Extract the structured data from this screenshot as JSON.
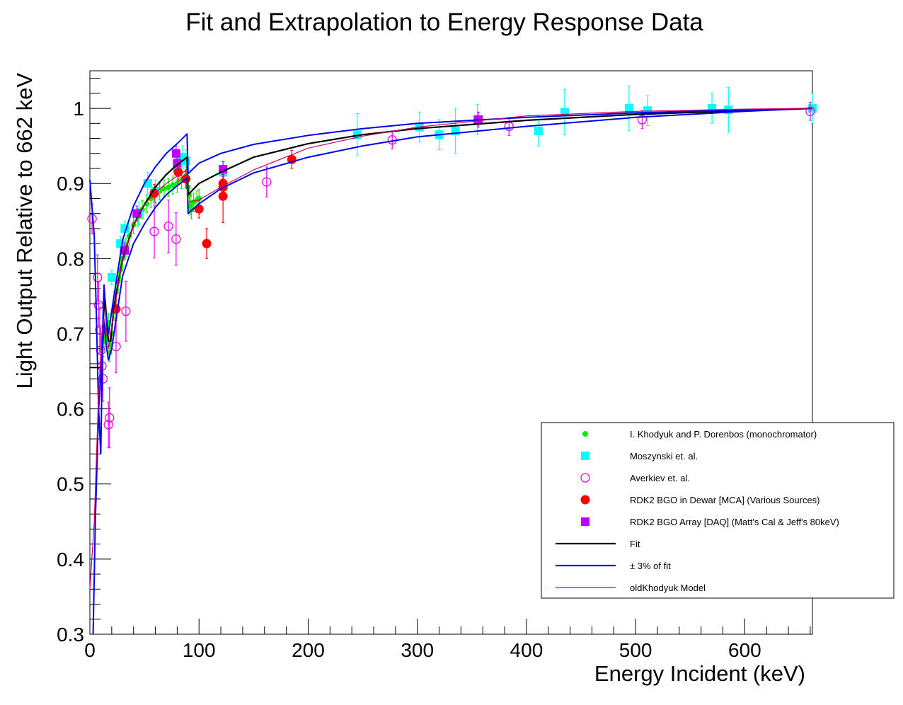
{
  "chart_data": {
    "type": "scatter",
    "title": "Fit and Extrapolation to Energy Response Data",
    "xlabel": "Energy Incident (keV)",
    "ylabel": "Light Output Relative to 662 keV",
    "xlim": [
      0,
      662
    ],
    "ylim": [
      0.3,
      1.05
    ],
    "x_ticks": [
      "0",
      "100",
      "200",
      "300",
      "400",
      "500",
      "600"
    ],
    "y_ticks": [
      "0.3",
      "0.4",
      "0.5",
      "0.6",
      "0.7",
      "0.8",
      "0.9",
      "1"
    ],
    "legend_position": "bottom-right",
    "colors": {
      "khodyuk": "#00ee00",
      "moszynski": "#00ffff",
      "averkiev": "#ee00ee",
      "rdk2_dewar": "#ff0000",
      "rdk2_array": "#bb00ff",
      "fit": "#000000",
      "band": "#0000ee",
      "old_model": "#cc0066"
    },
    "series": [
      {
        "name": "I. Khodyuk and P. Dorenbos (monochromator)",
        "kind": "points",
        "marker": "small-circle",
        "color_key": "khodyuk",
        "points": [
          [
            13,
            0.69,
            0.012
          ],
          [
            14,
            0.7,
            0.012
          ],
          [
            15,
            0.695,
            0.012
          ],
          [
            16,
            0.705,
            0.012
          ],
          [
            17,
            0.715,
            0.012
          ],
          [
            18,
            0.675,
            0.012
          ],
          [
            19,
            0.685,
            0.012
          ],
          [
            20,
            0.7,
            0.012
          ],
          [
            22,
            0.73,
            0.012
          ],
          [
            24,
            0.755,
            0.012
          ],
          [
            26,
            0.77,
            0.012
          ],
          [
            28,
            0.785,
            0.012
          ],
          [
            30,
            0.8,
            0.012
          ],
          [
            33,
            0.815,
            0.012
          ],
          [
            36,
            0.83,
            0.012
          ],
          [
            40,
            0.845,
            0.012
          ],
          [
            44,
            0.855,
            0.012
          ],
          [
            48,
            0.865,
            0.012
          ],
          [
            52,
            0.873,
            0.012
          ],
          [
            56,
            0.88,
            0.012
          ],
          [
            60,
            0.885,
            0.012
          ],
          [
            64,
            0.89,
            0.012
          ],
          [
            68,
            0.893,
            0.012
          ],
          [
            72,
            0.895,
            0.012
          ],
          [
            76,
            0.898,
            0.012
          ],
          [
            80,
            0.9,
            0.012
          ],
          [
            84,
            0.905,
            0.012
          ],
          [
            88,
            0.91,
            0.012
          ],
          [
            90,
            0.895,
            0.012
          ],
          [
            91,
            0.885,
            0.012
          ],
          [
            92,
            0.87,
            0.012
          ],
          [
            93,
            0.865,
            0.012
          ],
          [
            95,
            0.875,
            0.012
          ],
          [
            98,
            0.878,
            0.012
          ],
          [
            100,
            0.88,
            0.012
          ]
        ]
      },
      {
        "name": "Moszynski et. al.",
        "kind": "points",
        "marker": "square",
        "color_key": "moszynski",
        "points": [
          [
            20,
            0.775,
            0.01
          ],
          [
            28,
            0.82,
            0.01
          ],
          [
            32,
            0.84,
            0.01
          ],
          [
            45,
            0.86,
            0.015
          ],
          [
            53,
            0.9,
            0.015
          ],
          [
            60,
            0.89,
            0.015
          ],
          [
            80,
            0.92,
            0.015
          ],
          [
            85,
            0.935,
            0.015
          ],
          [
            88,
            0.93,
            0.015
          ],
          [
            122,
            0.915,
            0.015
          ],
          [
            245,
            0.965,
            0.028
          ],
          [
            302,
            0.975,
            0.02
          ],
          [
            320,
            0.965,
            0.02
          ],
          [
            335,
            0.97,
            0.03
          ],
          [
            355,
            0.985,
            0.02
          ],
          [
            411,
            0.97,
            0.02
          ],
          [
            435,
            0.995,
            0.03
          ],
          [
            494,
            1.0,
            0.03
          ],
          [
            511,
            0.997,
            0.02
          ],
          [
            570,
            1.0,
            0.02
          ],
          [
            585,
            0.998,
            0.03
          ],
          [
            662,
            1.0,
            0.02
          ]
        ]
      },
      {
        "name": "Averkiev et. al.",
        "kind": "points",
        "marker": "open-circle",
        "color_key": "averkiev",
        "points": [
          [
            2,
            0.853,
            0.02
          ],
          [
            7,
            0.775,
            0.03
          ],
          [
            8,
            0.738,
            0.03
          ],
          [
            9,
            0.705,
            0.03
          ],
          [
            10,
            0.678,
            0.03
          ],
          [
            11,
            0.657,
            0.03
          ],
          [
            12,
            0.64,
            0.03
          ],
          [
            17,
            0.579,
            0.03
          ],
          [
            18,
            0.588,
            0.04
          ],
          [
            24,
            0.683,
            0.035
          ],
          [
            33,
            0.73,
            0.04
          ],
          [
            59,
            0.836,
            0.035
          ],
          [
            72,
            0.843,
            0.035
          ],
          [
            79,
            0.826,
            0.035
          ],
          [
            162,
            0.902,
            0.02
          ],
          [
            277,
            0.958,
            0.012
          ],
          [
            384,
            0.976,
            0.012
          ],
          [
            506,
            0.985,
            0.012
          ],
          [
            660,
            0.996,
            0.012
          ]
        ]
      },
      {
        "name": "RDK2 BGO in Dewar [MCA] (Various Sources)",
        "kind": "points",
        "marker": "filled-circle",
        "color_key": "rdk2_dewar",
        "points": [
          [
            24,
            0.733,
            0.012
          ],
          [
            59,
            0.887,
            0.012
          ],
          [
            81,
            0.915,
            0.012
          ],
          [
            88,
            0.906,
            0.012
          ],
          [
            100,
            0.866,
            0.012
          ],
          [
            107,
            0.82,
            0.02
          ],
          [
            122,
            0.9,
            0.012
          ],
          [
            122,
            0.895,
            0.012
          ],
          [
            122,
            0.883,
            0.035
          ],
          [
            185,
            0.932,
            0.012
          ]
        ]
      },
      {
        "name": "RDK2 BGO Array [DAQ] (Matt's Cal & Jeff's 80keV)",
        "kind": "points",
        "marker": "square",
        "color_key": "rdk2_array",
        "points": [
          [
            32,
            0.811,
            0.01
          ],
          [
            43,
            0.86,
            0.01
          ],
          [
            79,
            0.94,
            0.01
          ],
          [
            80,
            0.927,
            0.01
          ],
          [
            122,
            0.919,
            0.01
          ],
          [
            356,
            0.985,
            0.01
          ]
        ]
      },
      {
        "name": "Fit",
        "kind": "line",
        "color_key": "fit",
        "width": 2.2,
        "points": [
          [
            0,
            0.655
          ],
          [
            11,
            0.655
          ],
          [
            12,
            0.71
          ],
          [
            13,
            0.735
          ],
          [
            14,
            0.745
          ],
          [
            16,
            0.705
          ],
          [
            17,
            0.69
          ],
          [
            19,
            0.69
          ],
          [
            22,
            0.735
          ],
          [
            30,
            0.8
          ],
          [
            40,
            0.845
          ],
          [
            50,
            0.872
          ],
          [
            60,
            0.895
          ],
          [
            70,
            0.912
          ],
          [
            80,
            0.925
          ],
          [
            89,
            0.935
          ],
          [
            90,
            0.885
          ],
          [
            92,
            0.888
          ],
          [
            100,
            0.9
          ],
          [
            120,
            0.915
          ],
          [
            150,
            0.935
          ],
          [
            200,
            0.953
          ],
          [
            250,
            0.965
          ],
          [
            300,
            0.973
          ],
          [
            400,
            0.984
          ],
          [
            500,
            0.992
          ],
          [
            600,
            0.997
          ],
          [
            662,
            1.0
          ]
        ]
      },
      {
        "name": "± 3% of fit",
        "kind": "line",
        "color_key": "band",
        "width": 2,
        "points": [
          [
            0,
            0.905
          ],
          [
            4,
            0.83
          ],
          [
            6,
            0.72
          ],
          [
            8,
            0.6
          ],
          [
            10,
            0.54
          ],
          [
            12,
            0.72
          ],
          [
            13,
            0.765
          ],
          [
            15,
            0.72
          ],
          [
            17,
            0.7
          ],
          [
            20,
            0.73
          ],
          [
            30,
            0.825
          ],
          [
            40,
            0.87
          ],
          [
            50,
            0.9
          ],
          [
            60,
            0.922
          ],
          [
            70,
            0.94
          ],
          [
            80,
            0.953
          ],
          [
            89,
            0.966
          ],
          [
            90,
            0.913
          ],
          [
            100,
            0.927
          ],
          [
            120,
            0.94
          ],
          [
            150,
            0.952
          ],
          [
            200,
            0.964
          ],
          [
            250,
            0.973
          ],
          [
            300,
            0.98
          ],
          [
            400,
            0.988
          ],
          [
            500,
            0.994
          ],
          [
            600,
            0.998
          ],
          [
            662,
            1.0
          ]
        ]
      },
      {
        "name": "",
        "kind": "line",
        "color_key": "band",
        "width": 2,
        "points": [
          [
            3,
            0.3
          ],
          [
            5,
            0.45
          ],
          [
            8,
            0.6
          ],
          [
            10,
            0.64
          ],
          [
            12,
            0.69
          ],
          [
            13,
            0.715
          ],
          [
            15,
            0.685
          ],
          [
            17,
            0.665
          ],
          [
            20,
            0.68
          ],
          [
            30,
            0.777
          ],
          [
            40,
            0.82
          ],
          [
            50,
            0.846
          ],
          [
            60,
            0.868
          ],
          [
            70,
            0.885
          ],
          [
            80,
            0.897
          ],
          [
            89,
            0.907
          ],
          [
            90,
            0.86
          ],
          [
            100,
            0.873
          ],
          [
            120,
            0.893
          ],
          [
            150,
            0.914
          ],
          [
            200,
            0.935
          ],
          [
            250,
            0.95
          ],
          [
            300,
            0.962
          ],
          [
            400,
            0.976
          ],
          [
            500,
            0.988
          ],
          [
            600,
            0.996
          ],
          [
            662,
            1.0
          ]
        ]
      },
      {
        "name": "oldKhodyuk Model",
        "kind": "line",
        "color_key": "old_model",
        "width": 1.2,
        "points": [
          [
            0,
            0.36
          ],
          [
            4,
            0.45
          ],
          [
            8,
            0.62
          ],
          [
            11,
            0.7
          ],
          [
            13,
            0.72
          ],
          [
            15,
            0.705
          ],
          [
            17,
            0.68
          ],
          [
            20,
            0.71
          ],
          [
            30,
            0.8
          ],
          [
            40,
            0.845
          ],
          [
            50,
            0.872
          ],
          [
            60,
            0.888
          ],
          [
            70,
            0.9
          ],
          [
            80,
            0.91
          ],
          [
            89,
            0.918
          ],
          [
            90,
            0.875
          ],
          [
            100,
            0.878
          ],
          [
            120,
            0.895
          ],
          [
            150,
            0.918
          ],
          [
            200,
            0.947
          ],
          [
            250,
            0.963
          ],
          [
            300,
            0.975
          ],
          [
            400,
            0.99
          ],
          [
            500,
            0.996
          ],
          [
            600,
            0.999
          ],
          [
            662,
            1.0
          ]
        ]
      }
    ],
    "legend": [
      {
        "label": "I. Khodyuk and P. Dorenbos (monochromator)",
        "symbol": "small-circle",
        "color_key": "khodyuk"
      },
      {
        "label": "Moszynski et. al.",
        "symbol": "square",
        "color_key": "moszynski"
      },
      {
        "label": "Averkiev et. al.",
        "symbol": "open-circle",
        "color_key": "averkiev"
      },
      {
        "label": "RDK2 BGO in Dewar [MCA] (Various Sources)",
        "symbol": "filled-circle",
        "color_key": "rdk2_dewar"
      },
      {
        "label": "RDK2 BGO Array [DAQ] (Matt's Cal & Jeff's 80keV)",
        "symbol": "square",
        "color_key": "rdk2_array"
      },
      {
        "label": "Fit",
        "symbol": "line-thick",
        "color_key": "fit"
      },
      {
        "label": "± 3% of fit",
        "symbol": "line-thick",
        "color_key": "band"
      },
      {
        "label": "oldKhodyuk Model",
        "symbol": "line-thin",
        "color_key": "old_model"
      }
    ]
  }
}
